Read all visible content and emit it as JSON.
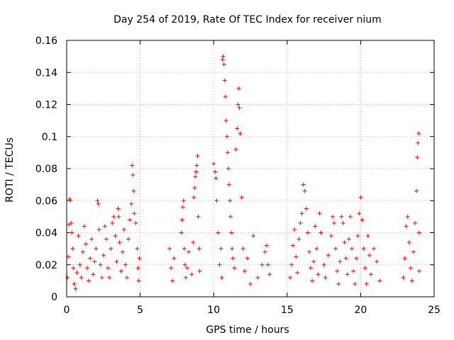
{
  "chart_data": {
    "type": "scatter",
    "title": "Day 254 of 2019, Rate Of TEC Index for receiver nium",
    "xlabel": "GPS time / hours",
    "ylabel": "ROTI / TECUs",
    "xlim": [
      0,
      25
    ],
    "ylim": [
      0,
      0.16
    ],
    "x_ticks": [
      "0",
      "5",
      "10",
      "15",
      "20",
      "25"
    ],
    "y_ticks": [
      "0",
      "0.02",
      "0.04",
      "0.06",
      "0.08",
      "0.1",
      "0.12",
      "0.14",
      "0.16"
    ],
    "grid": true,
    "marker": "plus",
    "series": [
      {
        "color": "#ff0000",
        "points": [
          [
            0.05,
            0.012
          ],
          [
            0.1,
            0.025
          ],
          [
            0.15,
            0.045
          ],
          [
            0.2,
            0.061
          ],
          [
            0.25,
            0.06
          ],
          [
            0.3,
            0.046
          ],
          [
            0.35,
            0.04
          ],
          [
            0.4,
            0.03
          ],
          [
            0.45,
            0.018
          ],
          [
            0.5,
            0.008
          ],
          [
            0.6,
            0.005
          ],
          [
            0.7,
            0.015
          ],
          [
            0.8,
            0.038
          ],
          [
            0.9,
            0.02
          ],
          [
            1.0,
            0.012
          ],
          [
            1.1,
            0.028
          ],
          [
            1.2,
            0.044
          ],
          [
            1.3,
            0.033
          ],
          [
            1.4,
            0.018
          ],
          [
            1.5,
            0.01
          ],
          [
            1.6,
            0.024
          ],
          [
            1.7,
            0.036
          ],
          [
            1.8,
            0.014
          ],
          [
            1.9,
            0.022
          ],
          [
            2.0,
            0.03
          ],
          [
            2.1,
            0.06
          ],
          [
            2.15,
            0.058
          ],
          [
            2.2,
            0.042
          ],
          [
            2.3,
            0.02
          ],
          [
            2.4,
            0.012
          ],
          [
            2.5,
            0.026
          ],
          [
            2.6,
            0.044
          ],
          [
            2.7,
            0.036
          ],
          [
            2.8,
            0.018
          ],
          [
            2.9,
            0.012
          ],
          [
            3.0,
            0.03
          ],
          [
            3.1,
            0.046
          ],
          [
            3.2,
            0.05
          ],
          [
            3.3,
            0.038
          ],
          [
            3.4,
            0.022
          ],
          [
            3.5,
            0.055
          ],
          [
            3.55,
            0.05
          ],
          [
            3.6,
            0.034
          ],
          [
            3.7,
            0.016
          ],
          [
            3.8,
            0.028
          ],
          [
            3.9,
            0.042
          ],
          [
            4.0,
            0.02
          ],
          [
            4.1,
            0.012
          ],
          [
            4.2,
            0.036
          ],
          [
            4.3,
            0.048
          ],
          [
            4.4,
            0.058
          ],
          [
            4.45,
            0.082
          ],
          [
            4.5,
            0.076
          ],
          [
            4.55,
            0.066
          ],
          [
            4.6,
            0.052
          ],
          [
            4.7,
            0.046
          ],
          [
            4.8,
            0.03
          ],
          [
            4.85,
            0.018
          ],
          [
            4.9,
            0.01
          ],
          [
            4.95,
            0.024
          ],
          [
            7.0,
            0.03
          ],
          [
            7.1,
            0.018
          ],
          [
            7.2,
            0.01
          ],
          [
            7.3,
            0.024
          ],
          [
            7.8,
            0.04
          ],
          [
            7.85,
            0.048
          ],
          [
            7.9,
            0.056
          ],
          [
            7.95,
            0.06
          ],
          [
            8.0,
            0.03
          ],
          [
            8.05,
            0.02
          ],
          [
            8.1,
            0.012
          ],
          [
            8.2,
            0.018
          ],
          [
            8.3,
            0.028
          ],
          [
            8.5,
            0.014
          ],
          [
            8.6,
            0.034
          ],
          [
            8.65,
            0.062
          ],
          [
            8.7,
            0.068
          ],
          [
            8.75,
            0.075
          ],
          [
            8.8,
            0.078
          ],
          [
            8.85,
            0.082
          ],
          [
            8.9,
            0.088
          ],
          [
            8.95,
            0.05
          ],
          [
            9.0,
            0.03
          ],
          [
            9.05,
            0.016
          ],
          [
            10.0,
            0.083
          ],
          [
            10.1,
            0.078
          ],
          [
            10.15,
            0.074
          ],
          [
            10.2,
            0.06
          ],
          [
            10.3,
            0.04
          ],
          [
            10.4,
            0.02
          ],
          [
            10.5,
            0.03
          ],
          [
            10.55,
            0.012
          ],
          [
            10.6,
            0.148
          ],
          [
            10.65,
            0.15
          ],
          [
            10.7,
            0.145
          ],
          [
            10.75,
            0.135
          ],
          [
            10.8,
            0.125
          ],
          [
            10.85,
            0.11
          ],
          [
            10.9,
            0.1
          ],
          [
            10.95,
            0.09
          ],
          [
            11.0,
            0.08
          ],
          [
            11.05,
            0.07
          ],
          [
            11.1,
            0.06
          ],
          [
            11.15,
            0.05
          ],
          [
            11.2,
            0.04
          ],
          [
            11.25,
            0.03
          ],
          [
            11.3,
            0.024
          ],
          [
            11.4,
            0.018
          ],
          [
            11.5,
            0.092
          ],
          [
            11.6,
            0.105
          ],
          [
            11.65,
            0.12
          ],
          [
            11.7,
            0.13
          ],
          [
            11.75,
            0.118
          ],
          [
            11.8,
            0.102
          ],
          [
            11.9,
            0.062
          ],
          [
            12.0,
            0.03
          ],
          [
            12.1,
            0.016
          ],
          [
            12.3,
            0.024
          ],
          [
            12.5,
            0.008
          ],
          [
            12.7,
            0.038
          ],
          [
            13.0,
            0.012
          ],
          [
            13.3,
            0.02
          ],
          [
            13.5,
            0.028
          ],
          [
            13.6,
            0.032
          ],
          [
            13.7,
            0.02
          ],
          [
            13.8,
            0.014
          ],
          [
            15.2,
            0.012
          ],
          [
            15.3,
            0.02
          ],
          [
            15.4,
            0.032
          ],
          [
            15.5,
            0.042
          ],
          [
            15.6,
            0.025
          ],
          [
            15.7,
            0.015
          ],
          [
            15.8,
            0.036
          ],
          [
            15.9,
            0.046
          ],
          [
            16.0,
            0.052
          ],
          [
            16.1,
            0.07
          ],
          [
            16.2,
            0.066
          ],
          [
            16.3,
            0.055
          ],
          [
            16.4,
            0.04
          ],
          [
            16.5,
            0.028
          ],
          [
            16.6,
            0.018
          ],
          [
            16.7,
            0.01
          ],
          [
            16.8,
            0.022
          ],
          [
            16.9,
            0.044
          ],
          [
            17.0,
            0.03
          ],
          [
            17.1,
            0.014
          ],
          [
            17.2,
            0.052
          ],
          [
            17.3,
            0.04
          ],
          [
            17.5,
            0.02
          ],
          [
            17.6,
            0.012
          ],
          [
            17.8,
            0.026
          ],
          [
            18.0,
            0.038
          ],
          [
            18.1,
            0.05
          ],
          [
            18.2,
            0.046
          ],
          [
            18.3,
            0.03
          ],
          [
            18.4,
            0.016
          ],
          [
            18.5,
            0.008
          ],
          [
            18.6,
            0.022
          ],
          [
            18.7,
            0.05
          ],
          [
            18.8,
            0.046
          ],
          [
            18.9,
            0.034
          ],
          [
            19.0,
            0.024
          ],
          [
            19.1,
            0.014
          ],
          [
            19.2,
            0.036
          ],
          [
            19.3,
            0.05
          ],
          [
            19.4,
            0.03
          ],
          [
            19.5,
            0.016
          ],
          [
            19.6,
            0.008
          ],
          [
            19.7,
            0.024
          ],
          [
            19.8,
            0.038
          ],
          [
            19.9,
            0.052
          ],
          [
            20.0,
            0.062
          ],
          [
            20.1,
            0.048
          ],
          [
            20.2,
            0.03
          ],
          [
            20.3,
            0.018
          ],
          [
            20.4,
            0.008
          ],
          [
            20.5,
            0.038
          ],
          [
            20.6,
            0.026
          ],
          [
            20.7,
            0.014
          ],
          [
            20.9,
            0.03
          ],
          [
            21.1,
            0.022
          ],
          [
            21.3,
            0.01
          ],
          [
            22.9,
            0.012
          ],
          [
            23.0,
            0.024
          ],
          [
            23.1,
            0.044
          ],
          [
            23.2,
            0.05
          ],
          [
            23.3,
            0.034
          ],
          [
            23.4,
            0.018
          ],
          [
            23.5,
            0.01
          ],
          [
            23.6,
            0.028
          ],
          [
            23.7,
            0.046
          ],
          [
            23.8,
            0.066
          ],
          [
            23.85,
            0.087
          ],
          [
            23.9,
            0.096
          ],
          [
            23.95,
            0.102
          ],
          [
            23.98,
            0.04
          ],
          [
            23.99,
            0.016
          ]
        ]
      }
    ]
  }
}
